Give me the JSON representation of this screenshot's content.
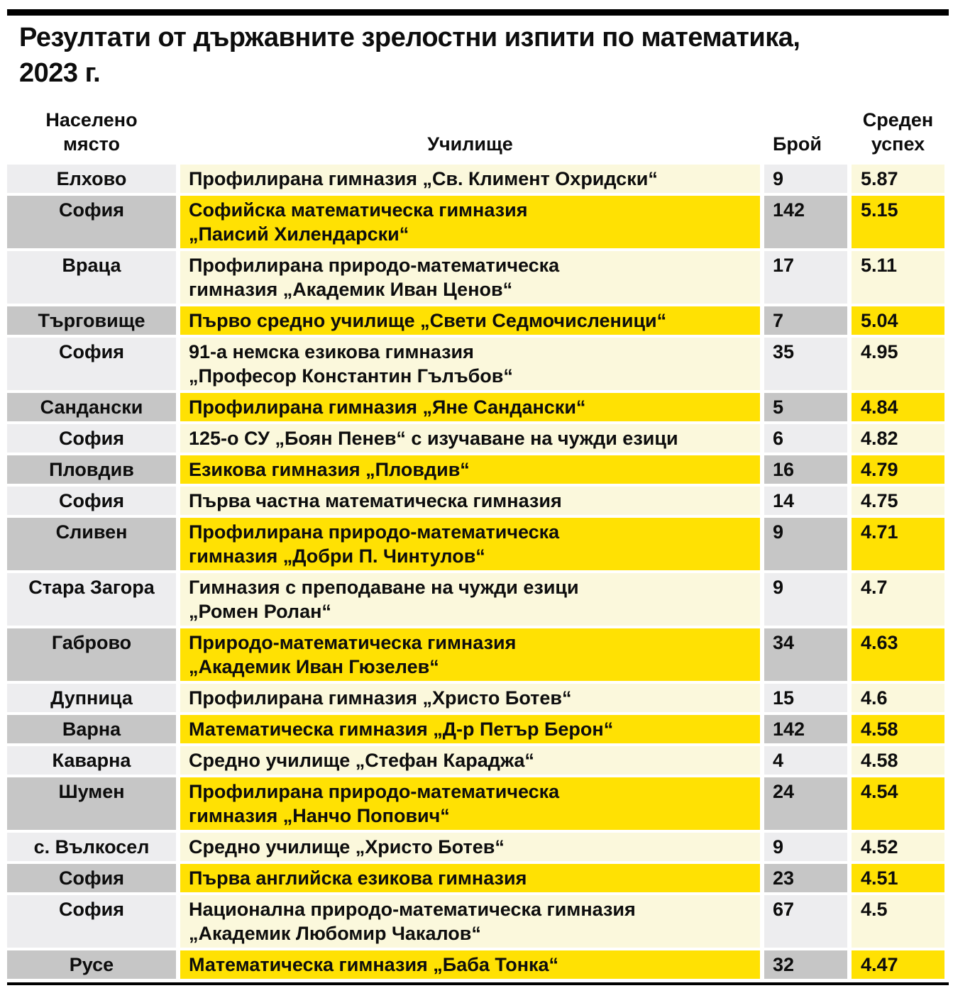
{
  "title": "Резултати от държавните зрелостни изпити по математика,\n2023 г.",
  "colors": {
    "highlight_yellow": "#ffe103",
    "row_cream": "#fbf8dc",
    "settlement_light_gray": "#ededef",
    "settlement_dark_gray": "#c6c6c6",
    "divider_black": "#000000",
    "text_black": "#0d0d0d"
  },
  "chart_data": {
    "type": "table",
    "title": "Резултати от държавните зрелостни изпити по математика, 2023 г.",
    "columns": [
      "Населено място",
      "Училище",
      "Брой",
      "Среден успех"
    ],
    "rows": [
      {
        "settlement": "Елхово",
        "school": "Профилирана гимназия „Св. Климент Охридски“",
        "count": "9",
        "score": "5.87"
      },
      {
        "settlement": "София",
        "school": "Софийска математическа гимназия\n„Паисий Хилендарски“",
        "count": "142",
        "score": "5.15"
      },
      {
        "settlement": "Враца",
        "school": "Профилирана природо-математическа\nгимназия „Академик Иван Ценов“",
        "count": "17",
        "score": "5.11"
      },
      {
        "settlement": "Търговище",
        "school": "Първо средно училище „Свети Седмочисленици“",
        "count": "7",
        "score": "5.04"
      },
      {
        "settlement": "София",
        "school": "91-а немска езикова гимназия\n„Професор Константин Гълъбов“",
        "count": "35",
        "score": "4.95"
      },
      {
        "settlement": "Сандански",
        "school": "Профилирана гимназия „Яне Сандански“",
        "count": "5",
        "score": "4.84"
      },
      {
        "settlement": "София",
        "school": "125-о СУ „Боян Пенев“ с изучаване на чужди езици",
        "count": "6",
        "score": "4.82"
      },
      {
        "settlement": "Пловдив",
        "school": "Езикова гимназия „Пловдив“",
        "count": "16",
        "score": "4.79"
      },
      {
        "settlement": "София",
        "school": "Първа частна математическа гимназия",
        "count": "14",
        "score": "4.75"
      },
      {
        "settlement": "Сливен",
        "school": "Профилирана природо-математическа\nгимназия „Добри П. Чинтулов“",
        "count": "9",
        "score": "4.71"
      },
      {
        "settlement": "Стара Загора",
        "school": "Гимназия с преподаване на чужди езици\n„Ромен Ролан“",
        "count": "9",
        "score": "4.7"
      },
      {
        "settlement": "Габрово",
        "school": "Природо-математическа гимназия\n„Академик Иван Гюзелев“",
        "count": "34",
        "score": "4.63"
      },
      {
        "settlement": "Дупница",
        "school": "Профилирана гимназия „Христо Ботев“",
        "count": "15",
        "score": "4.6"
      },
      {
        "settlement": "Варна",
        "school": "Математическа гимназия „Д-р Петър Берон“",
        "count": "142",
        "score": "4.58"
      },
      {
        "settlement": "Каварна",
        "school": "Средно училище „Стефан Караджа“",
        "count": "4",
        "score": "4.58"
      },
      {
        "settlement": "Шумен",
        "school": "Профилирана природо-математическа\nгимназия „Нанчо Попович“",
        "count": "24",
        "score": "4.54"
      },
      {
        "settlement": "с. Вълкосел",
        "school": "Средно училище „Христо Ботев“",
        "count": "9",
        "score": "4.52"
      },
      {
        "settlement": "София",
        "school": "Първа английска езикова гимназия",
        "count": "23",
        "score": "4.51"
      },
      {
        "settlement": "София",
        "school": "Национална природо-математическа гимназия\n„Академик Любомир Чакалов“",
        "count": "67",
        "score": "4.5"
      },
      {
        "settlement": "Русе",
        "school": "Математическа гимназия „Баба Тонка“",
        "count": "32",
        "score": "4.47"
      }
    ]
  }
}
